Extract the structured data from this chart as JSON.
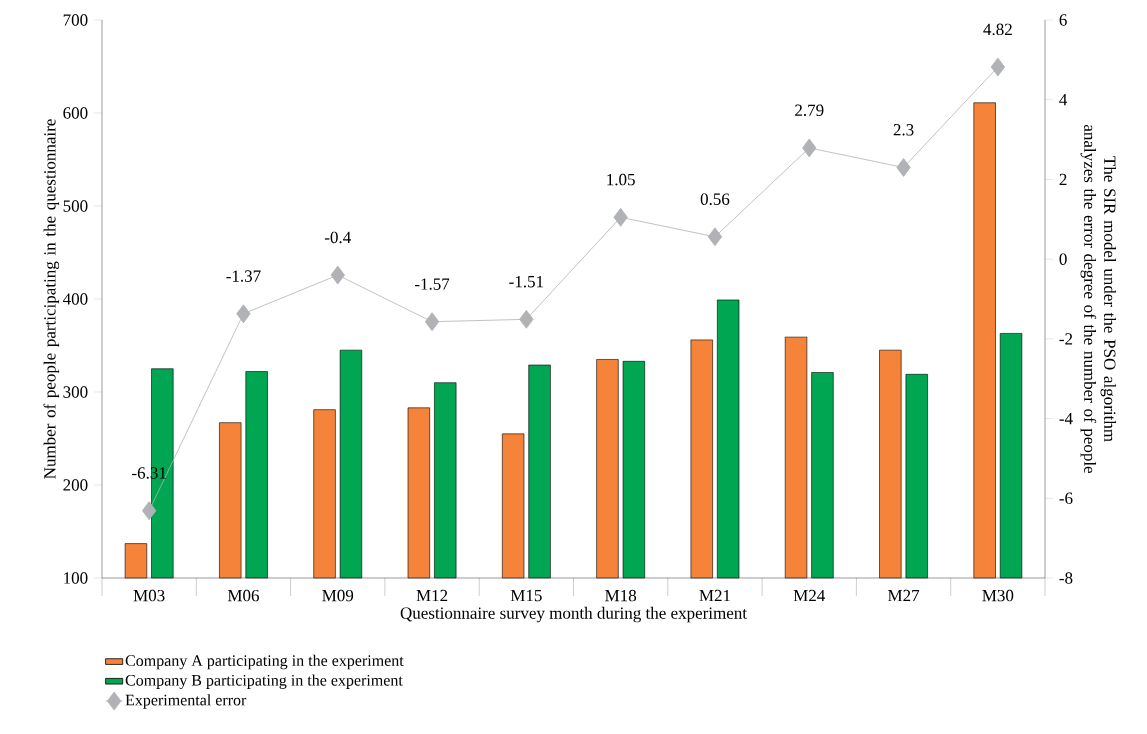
{
  "chart_data": {
    "type": "bar",
    "xlabel": "Questionnaire survey month during the experiment",
    "ylabel": "Number of people participating in the questionnaire",
    "y2label": "The SIR model under the PSO algorithm analyzes the error degree of the number of people",
    "categories": [
      "M03",
      "M06",
      "M09",
      "M12",
      "M15",
      "M18",
      "M21",
      "M24",
      "M27",
      "M30"
    ],
    "series": [
      {
        "name": "Company A participating in the experiment",
        "color": "#f5843a",
        "values": [
          137,
          267,
          281,
          283,
          255,
          335,
          356,
          359,
          345,
          611
        ]
      },
      {
        "name": "Company B participating in the experiment",
        "color": "#00a651",
        "values": [
          325,
          322,
          345,
          310,
          329,
          333,
          399,
          321,
          319,
          363
        ]
      },
      {
        "name": "Experimental error",
        "type": "line",
        "axis": "y2",
        "color": "#b0b2b6",
        "marker": "diamond",
        "values": [
          -6.31,
          -1.37,
          -0.4,
          -1.57,
          -1.51,
          1.05,
          0.56,
          2.79,
          2.3,
          4.82
        ],
        "value_labels": [
          "-6.31",
          "-1.37",
          "-0.4",
          "-1.57",
          "-1.51",
          "1.05",
          "0.56",
          "2.79",
          "2.3",
          "4.82"
        ]
      }
    ],
    "ylim": [
      100,
      700
    ],
    "yticks": [
      100,
      200,
      300,
      400,
      500,
      600,
      700
    ],
    "y2lim": [
      -8,
      6
    ],
    "y2ticks": [
      -8,
      -6,
      -4,
      -2,
      0,
      2,
      4,
      6
    ],
    "grid": false,
    "legend": "bottom"
  }
}
